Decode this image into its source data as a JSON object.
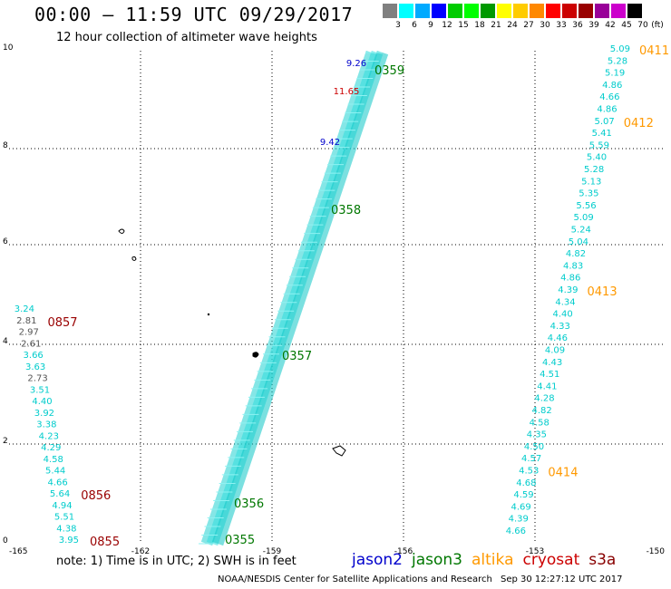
{
  "header": {
    "title": "00:00 — 11:59 UTC 09/29/2017",
    "subtitle": "12 hour collection of altimeter wave heights"
  },
  "legend": {
    "unit": "(ft)",
    "bins": [
      {
        "label": "3",
        "color": "#808080"
      },
      {
        "label": "6",
        "color": "#00ffff"
      },
      {
        "label": "9",
        "color": "#00aaff"
      },
      {
        "label": "12",
        "color": "#0000ff"
      },
      {
        "label": "15",
        "color": "#00cc00"
      },
      {
        "label": "18",
        "color": "#00ff00"
      },
      {
        "label": "21",
        "color": "#009900"
      },
      {
        "label": "24",
        "color": "#ffff00"
      },
      {
        "label": "27",
        "color": "#ffcc00"
      },
      {
        "label": "30",
        "color": "#ff8800"
      },
      {
        "label": "33",
        "color": "#ff0000"
      },
      {
        "label": "36",
        "color": "#cc0000"
      },
      {
        "label": "39",
        "color": "#990000"
      },
      {
        "label": "42",
        "color": "#990099"
      },
      {
        "label": "45",
        "color": "#cc00cc"
      },
      {
        "label": "70",
        "color": "#000000"
      }
    ]
  },
  "axes": {
    "x_ticks": [
      "-165",
      "-162",
      "-159",
      "-156",
      "-153",
      "-150"
    ],
    "y_ticks": [
      "0",
      "2",
      "4",
      "6",
      "8",
      "10"
    ],
    "grid": true
  },
  "satellites": [
    {
      "name": "jason2",
      "color": "#0000cc"
    },
    {
      "name": "jason3",
      "color": "#007700"
    },
    {
      "name": "altika",
      "color": "#ff9900"
    },
    {
      "name": "cryosat",
      "color": "#cc0000"
    },
    {
      "name": "s3a",
      "color": "#880000"
    }
  ],
  "footer": {
    "note": "note: 1) Time is in UTC; 2) SWH is in feet",
    "credit": "NOAA/NESDIS Center for Satellite Applications and Research",
    "timestamp": "Sep 30 12:27:12 UTC 2017"
  },
  "tracks": {
    "right_track": {
      "color": "#00cccc",
      "values": [
        "5.09",
        "5.28",
        "5.19",
        "4.86",
        "4.66",
        "4.86",
        "5.07",
        "5.41",
        "5.59",
        "5.40",
        "5.28",
        "5.13",
        "5.35",
        "5.56",
        "5.09",
        "5.24",
        "5.04",
        "4.82",
        "4.83",
        "4.86",
        "4.39",
        "4.34",
        "4.40",
        "4.33",
        "4.46",
        "4.09",
        "4.43",
        "4.51",
        "4.41",
        "4.28",
        "4.82",
        "4.58",
        "4.35",
        "4.50",
        "4.57",
        "4.53",
        "4.68",
        "4.59",
        "4.69",
        "4.39",
        "4.66"
      ],
      "times": [
        {
          "text": "0411",
          "color": "#ff9900",
          "after_index": 0
        },
        {
          "text": "0412",
          "color": "#ff9900",
          "after_index": 6
        },
        {
          "text": "0413",
          "color": "#ff9900",
          "after_index": 20
        },
        {
          "text": "0414",
          "color": "#ff9900",
          "after_index": 35
        }
      ]
    },
    "left_track": {
      "values": [
        {
          "v": "3.24",
          "c": "#00cccc"
        },
        {
          "v": "2.81",
          "c": "#555555"
        },
        {
          "v": "2.97",
          "c": "#555555"
        },
        {
          "v": "2.61",
          "c": "#555555"
        },
        {
          "v": "3.66",
          "c": "#00cccc"
        },
        {
          "v": "3.63",
          "c": "#00cccc"
        },
        {
          "v": "2.73",
          "c": "#555555"
        },
        {
          "v": "3.51",
          "c": "#00cccc"
        },
        {
          "v": "4.40",
          "c": "#00cccc"
        },
        {
          "v": "3.92",
          "c": "#00cccc"
        },
        {
          "v": "3.38",
          "c": "#00cccc"
        },
        {
          "v": "4.23",
          "c": "#00cccc"
        },
        {
          "v": "4.29",
          "c": "#00cccc"
        },
        {
          "v": "4.58",
          "c": "#00cccc"
        },
        {
          "v": "5.44",
          "c": "#00cccc"
        },
        {
          "v": "4.66",
          "c": "#00cccc"
        },
        {
          "v": "5.64",
          "c": "#00cccc"
        },
        {
          "v": "4.94",
          "c": "#00cccc"
        },
        {
          "v": "5.51",
          "c": "#00cccc"
        },
        {
          "v": "4.38",
          "c": "#00cccc"
        },
        {
          "v": "3.95",
          "c": "#00cccc"
        }
      ],
      "times": [
        {
          "text": "0857",
          "color": "#990000",
          "after_index": 1
        },
        {
          "text": "0856",
          "color": "#990000",
          "after_index": 16
        },
        {
          "text": "0855",
          "color": "#990000",
          "after_index": 20
        }
      ]
    },
    "diagonal_track": {
      "highlights": [
        {
          "v": "9.26",
          "c": "#0000cc"
        },
        {
          "v": "11.65",
          "c": "#cc0000"
        },
        {
          "v": "9.42",
          "c": "#0000cc"
        }
      ],
      "times": [
        {
          "text": "0359",
          "color": "#007700"
        },
        {
          "text": "0358",
          "color": "#007700"
        },
        {
          "text": "0357",
          "color": "#007700"
        },
        {
          "text": "0356",
          "color": "#007700"
        },
        {
          "text": "0355",
          "color": "#007700"
        }
      ]
    }
  }
}
